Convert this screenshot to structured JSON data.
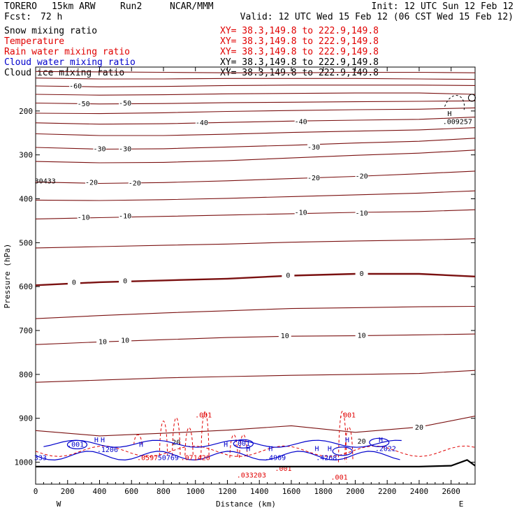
{
  "header": {
    "model": "TORERO",
    "resolution": "15km ARW",
    "run": "Run2",
    "org": "NCAR/MMM",
    "init": "Init: 12 UTC Sun 12 Feb 12",
    "fcst_label": "Fcst:",
    "fcst_value": "72 h",
    "valid": "Valid: 12 UTC Wed 15 Feb 12 (06 CST Wed 15 Feb 12)"
  },
  "legend": [
    {
      "name": "Snow mixing ratio",
      "xy": "XY=  38.3,149.8 to 222.9,149.8",
      "color": "#000000",
      "xy_color": "#e00000"
    },
    {
      "name": "Temperature",
      "xy": "XY=  38.3,149.8 to 222.9,149.8",
      "color": "#e00000",
      "xy_color": "#e00000"
    },
    {
      "name": "Rain water mixing ratio",
      "xy": "XY=  38.3,149.8 to 222.9,149.8",
      "color": "#e00000",
      "xy_color": "#e00000"
    },
    {
      "name": "Cloud water mixing ratio",
      "xy": "XY=  38.3,149.8 to 222.9,149.8",
      "color": "#0000cc",
      "xy_color": "#000000"
    },
    {
      "name": "Cloud ice mixing ratio",
      "xy": "XY=  38.3,149.8 to 222.9,149.8",
      "color": "#000000",
      "xy_color": "#000000"
    }
  ],
  "chart_data": {
    "type": "contour-cross-section",
    "xlabel": "Distance (km)",
    "ylabel": "Pressure (hPa)",
    "xlim": [
      0,
      2750
    ],
    "ylim": [
      1050,
      100
    ],
    "x_ticks": [
      0,
      200,
      400,
      600,
      800,
      1000,
      1200,
      1400,
      1600,
      1800,
      2000,
      2200,
      2400,
      2600
    ],
    "y_ticks": [
      200,
      300,
      400,
      500,
      600,
      700,
      800,
      900,
      1000
    ],
    "left_end_label": "W",
    "right_end_label": "E",
    "temperature_color": "#7a1010",
    "rain_color": "#e00000",
    "cloud_color": "#0000cc",
    "temperature_isotherms": [
      {
        "level": -70,
        "p": [
          110,
          111,
          112,
          113,
          113,
          112,
          112,
          113
        ],
        "x": [
          0,
          400,
          800,
          1200,
          1600,
          2000,
          2400,
          2750
        ]
      },
      {
        "level": -65,
        "p": [
          125,
          127,
          127,
          126,
          126,
          126,
          127,
          128
        ],
        "x": [
          0,
          400,
          800,
          1200,
          1600,
          2000,
          2400,
          2750
        ]
      },
      {
        "level": -60,
        "p": [
          143,
          145,
          144,
          142,
          141,
          141,
          141,
          142
        ],
        "x": [
          0,
          400,
          800,
          1200,
          1600,
          2000,
          2400,
          2750
        ]
      },
      {
        "level": -55,
        "p": [
          162,
          164,
          163,
          161,
          160,
          159,
          159,
          162
        ],
        "x": [
          0,
          400,
          800,
          1200,
          1600,
          2000,
          2400,
          2750
        ]
      },
      {
        "level": -50,
        "p": [
          182,
          184,
          183,
          181,
          180,
          179,
          178,
          177
        ],
        "x": [
          0,
          400,
          800,
          1200,
          1600,
          2000,
          2400,
          2750
        ]
      },
      {
        "level": -45,
        "p": [
          205,
          206,
          204,
          201,
          199,
          197,
          196,
          193
        ],
        "x": [
          0,
          400,
          800,
          1200,
          1600,
          2000,
          2400,
          2750
        ]
      },
      {
        "level": -40,
        "p": [
          227,
          230,
          229,
          226,
          223,
          221,
          219,
          214
        ],
        "x": [
          0,
          400,
          800,
          1200,
          1600,
          2000,
          2400,
          2750
        ]
      },
      {
        "level": -35,
        "p": [
          252,
          256,
          256,
          253,
          249,
          246,
          243,
          238
        ],
        "x": [
          0,
          400,
          800,
          1200,
          1600,
          2000,
          2400,
          2750
        ]
      },
      {
        "level": -30,
        "p": [
          283,
          287,
          286,
          282,
          278,
          273,
          269,
          262
        ],
        "x": [
          0,
          400,
          800,
          1200,
          1600,
          2000,
          2400,
          2750
        ]
      },
      {
        "level": -25,
        "p": [
          315,
          318,
          317,
          313,
          307,
          301,
          296,
          289
        ],
        "x": [
          0,
          400,
          800,
          1200,
          1600,
          2000,
          2400,
          2750
        ]
      },
      {
        "level": -20,
        "p": [
          362,
          365,
          363,
          359,
          354,
          349,
          343,
          337
        ],
        "x": [
          0,
          400,
          800,
          1200,
          1600,
          2000,
          2400,
          2750
        ]
      },
      {
        "level": -15,
        "p": [
          403,
          404,
          402,
          399,
          395,
          391,
          387,
          382
        ],
        "x": [
          0,
          400,
          800,
          1200,
          1600,
          2000,
          2400,
          2750
        ]
      },
      {
        "level": -10,
        "p": [
          446,
          443,
          440,
          437,
          434,
          431,
          429,
          425
        ],
        "x": [
          0,
          400,
          800,
          1200,
          1600,
          2000,
          2400,
          2750
        ]
      },
      {
        "level": -5,
        "p": [
          512,
          509,
          506,
          503,
          499,
          496,
          494,
          491
        ],
        "x": [
          0,
          400,
          800,
          1200,
          1600,
          2000,
          2400,
          2750
        ]
      },
      {
        "level": 0,
        "p": [
          597,
          590,
          586,
          582,
          575,
          571,
          571,
          577
        ],
        "x": [
          0,
          400,
          800,
          1200,
          1600,
          2000,
          2400,
          2750
        ],
        "bold": true
      },
      {
        "level": 5,
        "p": [
          673,
          666,
          660,
          655,
          650,
          648,
          646,
          645
        ],
        "x": [
          0,
          400,
          800,
          1200,
          1600,
          2000,
          2400,
          2750
        ]
      },
      {
        "level": 10,
        "p": [
          732,
          726,
          721,
          716,
          713,
          712,
          710,
          708
        ],
        "x": [
          0,
          400,
          800,
          1200,
          1600,
          2000,
          2400,
          2750
        ]
      },
      {
        "level": 15,
        "p": [
          818,
          813,
          808,
          805,
          802,
          800,
          798,
          791
        ],
        "x": [
          0,
          400,
          800,
          1200,
          1600,
          2000,
          2400,
          2750
        ]
      },
      {
        "level": 20,
        "p": [
          928,
          940,
          934,
          927,
          917,
          932,
          920,
          895
        ],
        "x": [
          0,
          400,
          800,
          1200,
          1600,
          2000,
          2400,
          2750
        ]
      }
    ],
    "isotherm_labels": [
      {
        "text": "-60",
        "x": 250,
        "p": 144
      },
      {
        "text": "-50",
        "x": 300,
        "p": 184
      },
      {
        "text": "-50",
        "x": 560,
        "p": 183
      },
      {
        "text": "-40",
        "x": 1040,
        "p": 227
      },
      {
        "text": "-40",
        "x": 1660,
        "p": 225
      },
      {
        "text": "-30",
        "x": 400,
        "p": 287
      },
      {
        "text": "-30",
        "x": 560,
        "p": 287
      },
      {
        "text": "-30",
        "x": 1740,
        "p": 283
      },
      {
        "text": "-20",
        "x": 350,
        "p": 363
      },
      {
        "text": "-20",
        "x": 620,
        "p": 365
      },
      {
        "text": "-20",
        "x": 1740,
        "p": 353
      },
      {
        "text": "-20",
        "x": 2040,
        "p": 349
      },
      {
        "text": "-10",
        "x": 300,
        "p": 443
      },
      {
        "text": "-10",
        "x": 560,
        "p": 440
      },
      {
        "text": "-10",
        "x": 1660,
        "p": 432
      },
      {
        "text": "-10",
        "x": 2040,
        "p": 433
      },
      {
        "text": "0",
        "x": 240,
        "p": 591
      },
      {
        "text": "0",
        "x": 560,
        "p": 588
      },
      {
        "text": "0",
        "x": 1580,
        "p": 575
      },
      {
        "text": "0",
        "x": 2040,
        "p": 571
      },
      {
        "text": "10",
        "x": 420,
        "p": 726
      },
      {
        "text": "10",
        "x": 560,
        "p": 723
      },
      {
        "text": "10",
        "x": 1560,
        "p": 713
      },
      {
        "text": "10",
        "x": 2040,
        "p": 712
      },
      {
        "text": "20",
        "x": 2400,
        "p": 921
      },
      {
        "text": "20",
        "x": 2040,
        "p": 953
      },
      {
        "text": "20",
        "x": 880,
        "p": 955
      }
    ],
    "rain_labels": [
      {
        "text": ".001",
        "x": 1050,
        "p": 893
      },
      {
        "text": ".001",
        "x": 1950,
        "p": 893
      },
      {
        "text": ".0597",
        "x": 700,
        "p": 990
      },
      {
        "text": ".071420",
        "x": 1000,
        "p": 990
      },
      {
        "text": ".033203",
        "x": 1350,
        "p": 1030
      },
      {
        "text": ".001",
        "x": 1550,
        "p": 1015
      },
      {
        "text": ".001",
        "x": 1900,
        "p": 1035
      }
    ],
    "cloud_labels": [
      {
        "text": ".001",
        "x": 250,
        "p": 960
      },
      {
        "text": ".1206",
        "x": 450,
        "p": 972
      },
      {
        "text": "333",
        "x": 30,
        "p": 990
      },
      {
        "text": "50769",
        "x": 830,
        "p": 990
      },
      {
        "text": ".001",
        "x": 1290,
        "p": 958
      },
      {
        "text": ".4909",
        "x": 1500,
        "p": 990
      },
      {
        "text": ".4268",
        "x": 1820,
        "p": 990
      },
      {
        "text": ".2022",
        "x": 2190,
        "p": 970
      },
      {
        "text": "30433",
        "x": 60,
        "p": 360
      },
      {
        "text": ".009257",
        "x": 2640,
        "p": 225
      }
    ],
    "highs": [
      {
        "x": 380,
        "p": 950
      },
      {
        "x": 420,
        "p": 950
      },
      {
        "x": 660,
        "p": 960
      },
      {
        "x": 1190,
        "p": 960
      },
      {
        "x": 1330,
        "p": 970
      },
      {
        "x": 1470,
        "p": 970
      },
      {
        "x": 1760,
        "p": 970
      },
      {
        "x": 1840,
        "p": 970
      },
      {
        "x": 1950,
        "p": 950
      },
      {
        "x": 2160,
        "p": 950
      },
      {
        "x": 2590,
        "p": 207
      }
    ],
    "ground_p": [
      1010,
      1010,
      1010,
      1010,
      1010,
      1010,
      1010,
      1008,
      995,
      1008
    ],
    "ground_x": [
      0,
      400,
      800,
      1200,
      1600,
      2000,
      2400,
      2600,
      2700,
      2750
    ]
  }
}
